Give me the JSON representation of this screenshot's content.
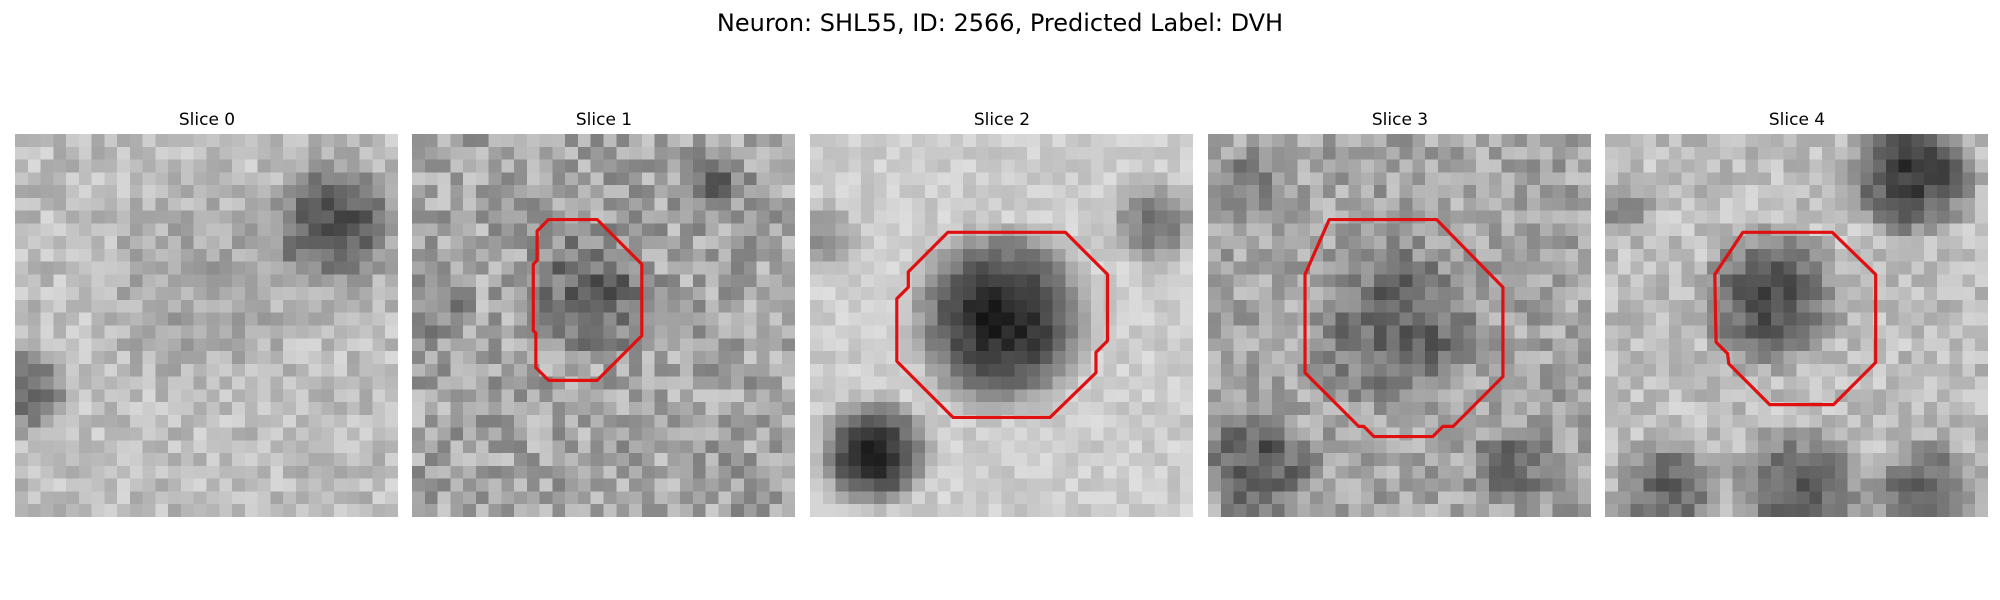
{
  "figure": {
    "title": "Neuron: SHL55, ID: 2566, Predicted Label: DVH"
  },
  "panels": [
    {
      "title": "Slice 0",
      "has_roi_outline": false
    },
    {
      "title": "Slice 1",
      "has_roi_outline": true
    },
    {
      "title": "Slice 2",
      "has_roi_outline": true
    },
    {
      "title": "Slice 3",
      "has_roi_outline": true
    },
    {
      "title": "Slice 4",
      "has_roi_outline": true
    }
  ],
  "colors": {
    "roi_outline": "#e01010",
    "background": "#ffffff"
  },
  "image": {
    "colormap": "grayscale",
    "grid": "30x30 pixels"
  }
}
